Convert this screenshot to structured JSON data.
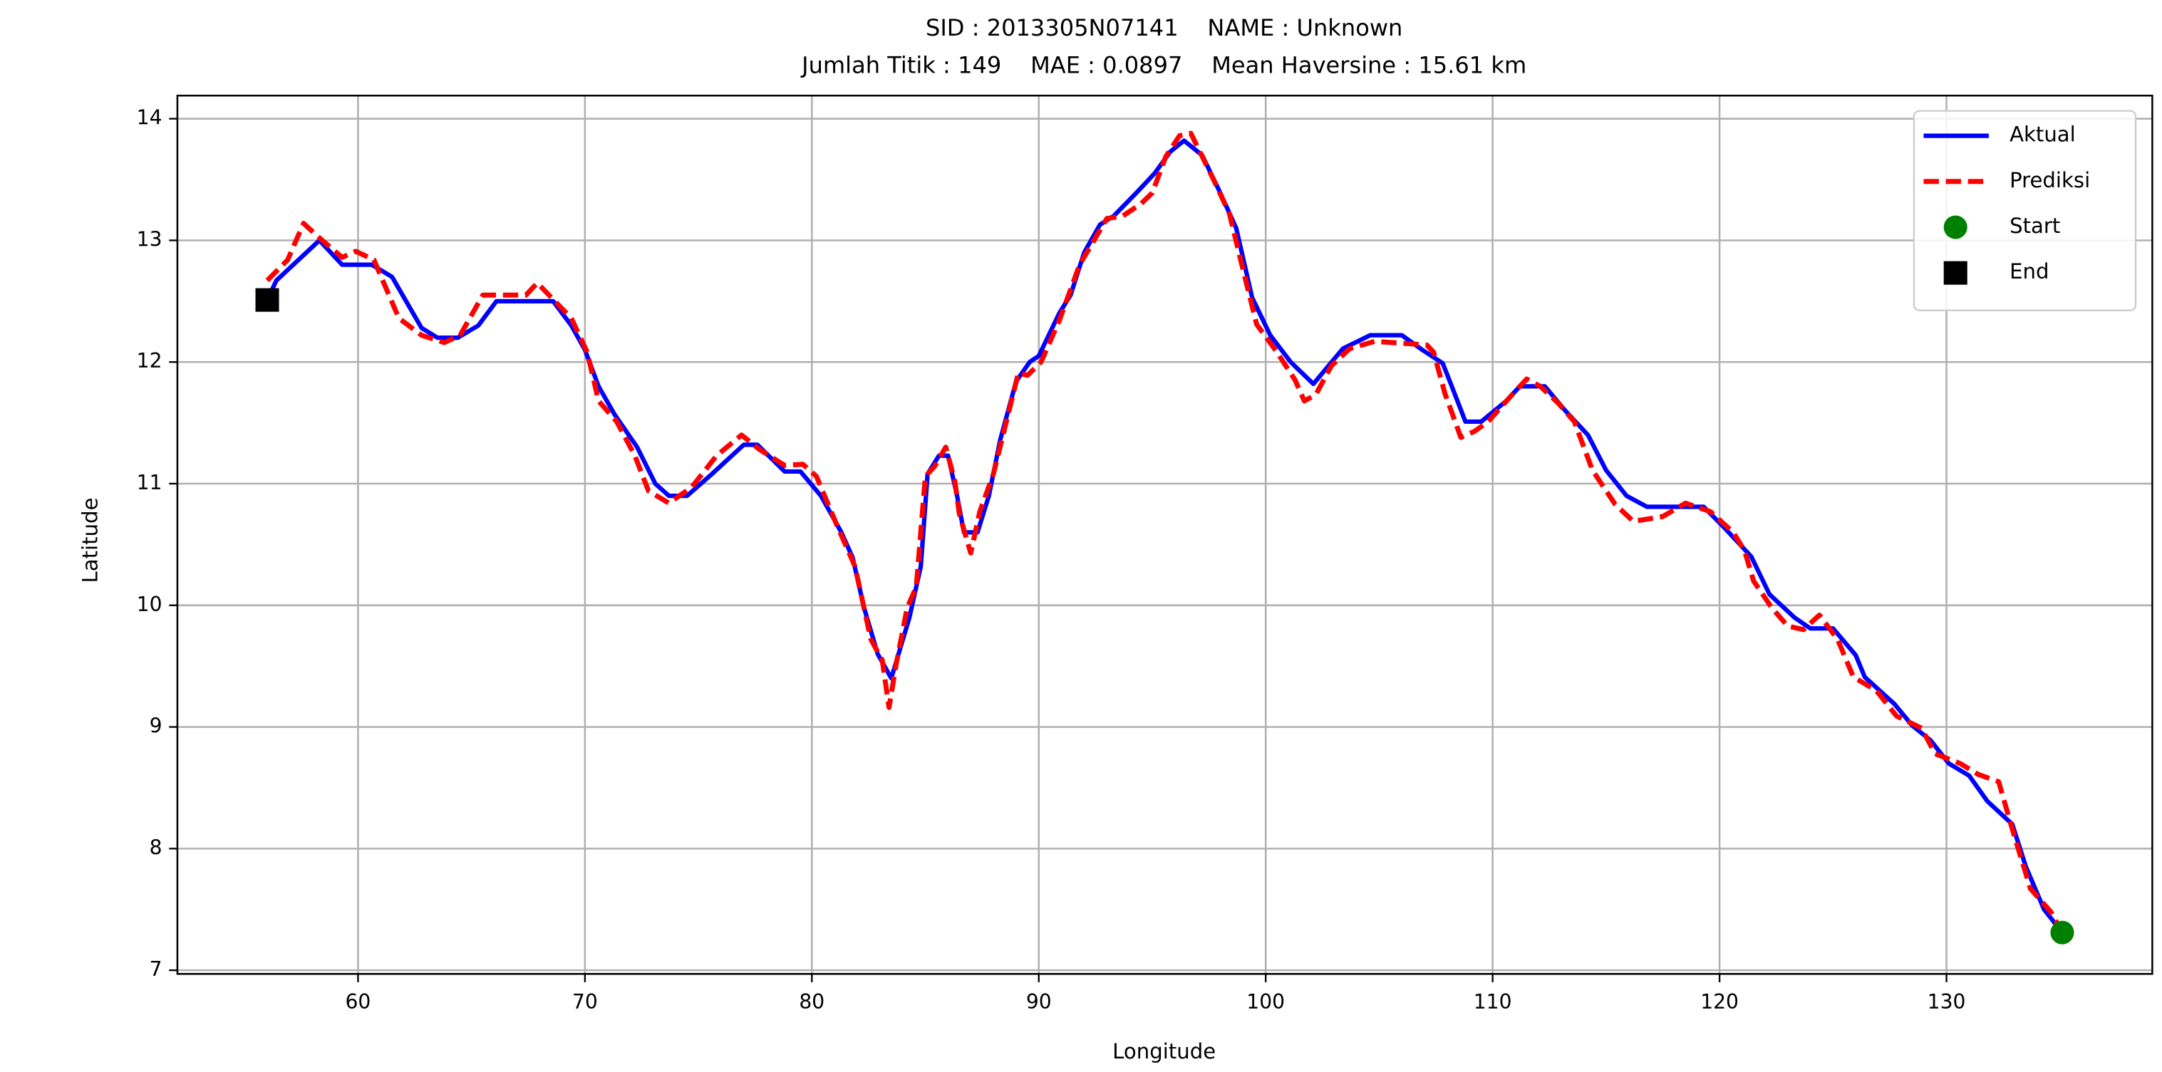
{
  "chart_data": {
    "type": "line",
    "title": [
      "SID : 2013305N07141    NAME : Unknown",
      "Jumlah Titik : 149    MAE : 0.0897    Mean Haversine : 15.61 km"
    ],
    "xlabel": "Longitude",
    "ylabel": "Latitude",
    "xlim": [
      52.04,
      139.07
    ],
    "ylim": [
      6.97,
      14.19
    ],
    "xticks": [
      60,
      70,
      80,
      90,
      100,
      110,
      120,
      130
    ],
    "yticks": [
      7,
      8,
      9,
      10,
      11,
      12,
      13,
      14
    ],
    "grid": true,
    "legend": "upper right",
    "series": [
      {
        "name": "Aktual",
        "color": "#0000ff",
        "linestyle": "solid",
        "x": [
          56.0,
          56.4,
          58.3,
          59.3,
          60.6,
          61.5,
          62.8,
          63.5,
          64.4,
          65.3,
          66.1,
          68.6,
          69.4,
          70.0,
          70.6,
          71.3,
          72.3,
          73.1,
          73.7,
          74.5,
          75.6,
          77.0,
          77.6,
          78.8,
          79.5,
          80.4,
          81.3,
          81.8,
          82.3,
          82.9,
          83.5,
          84.3,
          84.8,
          85.1,
          85.6,
          86.0,
          86.4,
          86.7,
          87.3,
          87.8,
          88.3,
          89.0,
          89.6,
          90.0,
          90.9,
          91.4,
          92.0,
          92.7,
          93.3,
          94.4,
          95.1,
          95.8,
          96.4,
          97.2,
          98.0,
          98.7,
          99.4,
          100.2,
          101.1,
          102.1,
          103.4,
          104.6,
          106.0,
          106.9,
          107.8,
          108.2,
          108.8,
          109.5,
          110.6,
          111.2,
          112.3,
          113.2,
          114.2,
          115.0,
          115.9,
          116.8,
          119.3,
          120.2,
          121.4,
          122.2,
          123.3,
          124.0,
          125.0,
          126.0,
          126.4,
          127.7,
          128.5,
          129.3,
          130.1,
          131.0,
          131.8,
          132.9,
          133.5,
          134.3,
          135.1
        ],
        "values": [
          12.51,
          12.67,
          13.0,
          12.8,
          12.8,
          12.7,
          12.28,
          12.2,
          12.2,
          12.3,
          12.5,
          12.5,
          12.3,
          12.1,
          11.8,
          11.57,
          11.3,
          11.0,
          10.9,
          10.9,
          11.08,
          11.32,
          11.32,
          11.1,
          11.1,
          10.9,
          10.6,
          10.39,
          9.98,
          9.6,
          9.4,
          9.9,
          10.32,
          11.08,
          11.23,
          11.23,
          10.9,
          10.6,
          10.6,
          10.9,
          11.36,
          11.84,
          12.0,
          12.05,
          12.4,
          12.55,
          12.9,
          13.13,
          13.2,
          13.41,
          13.55,
          13.73,
          13.82,
          13.7,
          13.39,
          13.1,
          12.53,
          12.22,
          12.0,
          11.82,
          12.11,
          12.22,
          12.22,
          12.1,
          11.99,
          11.8,
          11.51,
          11.51,
          11.68,
          11.8,
          11.8,
          11.6,
          11.4,
          11.11,
          10.9,
          10.81,
          10.81,
          10.64,
          10.4,
          10.09,
          9.9,
          9.81,
          9.81,
          9.59,
          9.41,
          9.19,
          9.01,
          8.89,
          8.7,
          8.6,
          8.39,
          8.2,
          7.85,
          7.5,
          7.31
        ]
      },
      {
        "name": "Prediksi",
        "color": "#ff0000",
        "linestyle": "dashed",
        "x": [
          56.0,
          56.9,
          57.6,
          58.3,
          59.3,
          59.9,
          60.7,
          61.8,
          62.8,
          63.8,
          64.5,
          65.5,
          67.4,
          67.9,
          69.4,
          70.1,
          70.6,
          71.4,
          72.2,
          72.8,
          73.7,
          74.7,
          75.8,
          76.9,
          77.7,
          78.8,
          79.6,
          80.2,
          81.1,
          81.9,
          82.6,
          83.1,
          83.4,
          83.7,
          84.2,
          84.6,
          85.0,
          85.4,
          85.9,
          86.3,
          86.5,
          87.0,
          87.4,
          88.0,
          89.1,
          89.5,
          90.1,
          90.9,
          91.8,
          93.0,
          93.7,
          94.5,
          95.0,
          95.6,
          96.2,
          96.7,
          97.7,
          98.4,
          99.0,
          99.6,
          100.5,
          101.3,
          101.7,
          102.2,
          102.9,
          103.7,
          104.8,
          107.1,
          107.4,
          107.9,
          108.6,
          109.2,
          109.8,
          110.9,
          111.5,
          112.1,
          112.9,
          113.6,
          114.4,
          115.4,
          116.2,
          117.5,
          118.5,
          119.6,
          120.6,
          121.1,
          121.5,
          122.3,
          123.0,
          123.7,
          124.4,
          125.2,
          125.9,
          126.9,
          127.8,
          128.9,
          129.5,
          130.6,
          131.4,
          132.3,
          132.9,
          133.7,
          134.6,
          135.1
        ],
        "values": [
          12.67,
          12.84,
          13.14,
          13.02,
          12.86,
          12.91,
          12.84,
          12.36,
          12.22,
          12.16,
          12.22,
          12.55,
          12.55,
          12.65,
          12.36,
          12.08,
          11.68,
          11.51,
          11.23,
          10.94,
          10.84,
          10.97,
          11.23,
          11.4,
          11.28,
          11.15,
          11.16,
          11.06,
          10.66,
          10.32,
          9.72,
          9.55,
          9.16,
          9.5,
          9.98,
          10.15,
          11.06,
          11.14,
          11.3,
          11.02,
          10.75,
          10.43,
          10.77,
          11.08,
          11.91,
          11.89,
          12.0,
          12.34,
          12.8,
          13.18,
          13.2,
          13.3,
          13.39,
          13.69,
          13.86,
          13.88,
          13.5,
          13.22,
          12.76,
          12.31,
          12.08,
          11.85,
          11.68,
          11.73,
          11.97,
          12.11,
          12.17,
          12.14,
          12.08,
          11.74,
          11.38,
          11.43,
          11.51,
          11.74,
          11.86,
          11.8,
          11.66,
          11.51,
          11.11,
          10.83,
          10.69,
          10.73,
          10.84,
          10.77,
          10.6,
          10.45,
          10.2,
          9.98,
          9.83,
          9.8,
          9.92,
          9.72,
          9.41,
          9.3,
          9.09,
          8.99,
          8.78,
          8.7,
          8.61,
          8.55,
          8.16,
          7.67,
          7.48,
          7.31
        ]
      },
      {
        "name": "Start",
        "color": "#008000",
        "marker": "circle",
        "x": [
          135.1
        ],
        "values": [
          7.31
        ]
      },
      {
        "name": "End",
        "color": "#000000",
        "marker": "square",
        "x": [
          56.0
        ],
        "values": [
          12.51
        ]
      }
    ]
  }
}
